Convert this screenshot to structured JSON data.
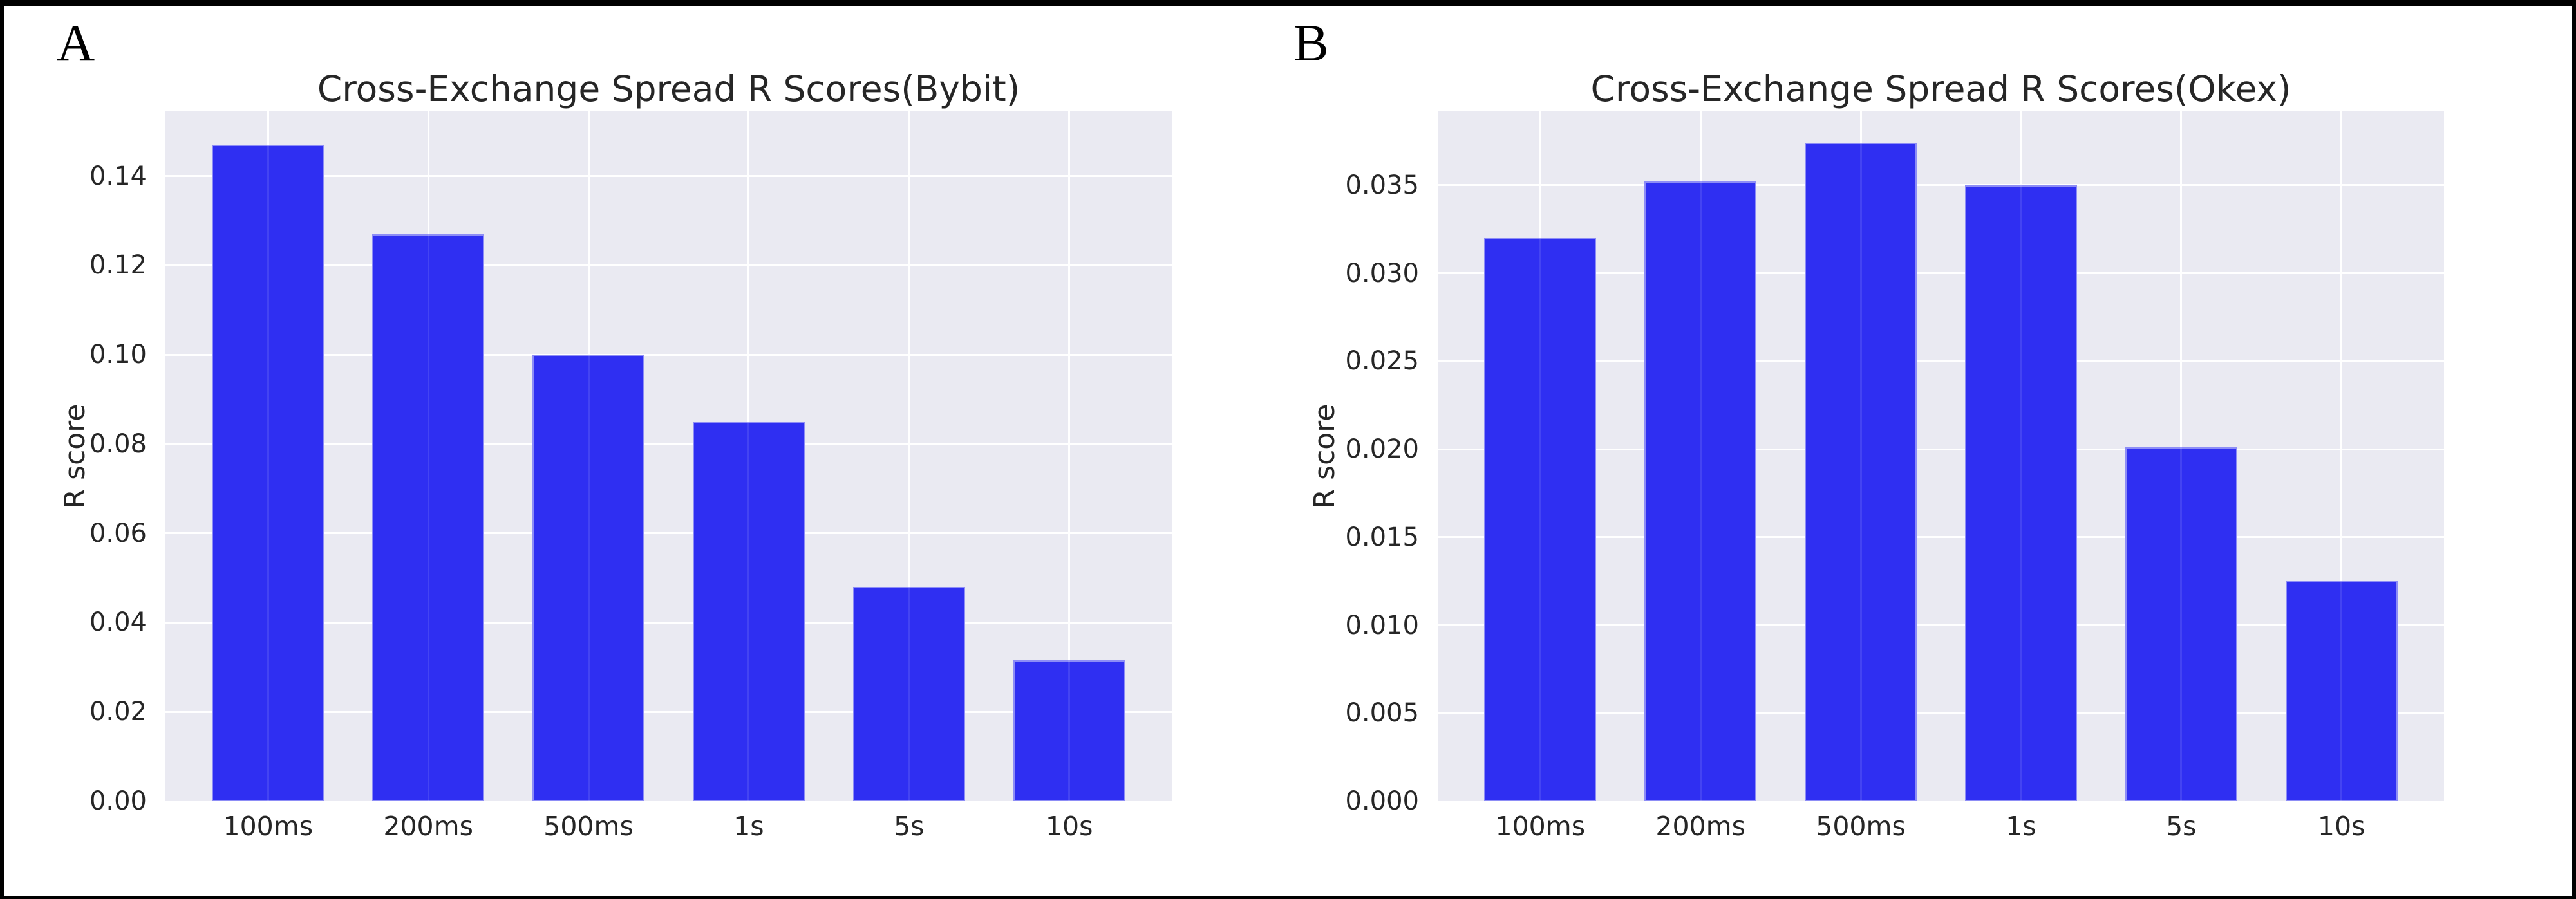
{
  "figure": {
    "background": "#ffffff",
    "frame_color": "#000000",
    "plot_background": "#eaeaf2",
    "grid_color": "#ffffff",
    "text_color": "#262626",
    "bar_color": "#2f2ff2"
  },
  "chart_data": [
    {
      "type": "bar",
      "panel_label": "A",
      "title": "Cross-Exchange Spread R Scores(Bybit)",
      "categories": [
        "100ms",
        "200ms",
        "500ms",
        "1s",
        "5s",
        "10s"
      ],
      "values": [
        0.147,
        0.127,
        0.1,
        0.085,
        0.048,
        0.0315
      ],
      "xlabel": "",
      "ylabel": "R score",
      "ylim": [
        0,
        0.1545
      ],
      "yticks": [
        0.0,
        0.02,
        0.04,
        0.06,
        0.08,
        0.1,
        0.12,
        0.14
      ],
      "ytick_labels": [
        "0.00",
        "0.02",
        "0.04",
        "0.06",
        "0.08",
        "0.10",
        "0.12",
        "0.14"
      ],
      "grid": true,
      "legend": "none",
      "bar_color": "#2f2ff2"
    },
    {
      "type": "bar",
      "panel_label": "B",
      "title": "Cross-Exchange Spread R Scores(Okex)",
      "categories": [
        "100ms",
        "200ms",
        "500ms",
        "1s",
        "5s",
        "10s"
      ],
      "values": [
        0.032,
        0.0352,
        0.0374,
        0.035,
        0.0201,
        0.0125
      ],
      "xlabel": "",
      "ylabel": "R score",
      "ylim": [
        0,
        0.0392
      ],
      "yticks": [
        0.0,
        0.005,
        0.01,
        0.015,
        0.02,
        0.025,
        0.03,
        0.035
      ],
      "ytick_labels": [
        "0.000",
        "0.005",
        "0.010",
        "0.015",
        "0.020",
        "0.025",
        "0.030",
        "0.035"
      ],
      "grid": true,
      "legend": "none",
      "bar_color": "#2f2ff2"
    }
  ]
}
